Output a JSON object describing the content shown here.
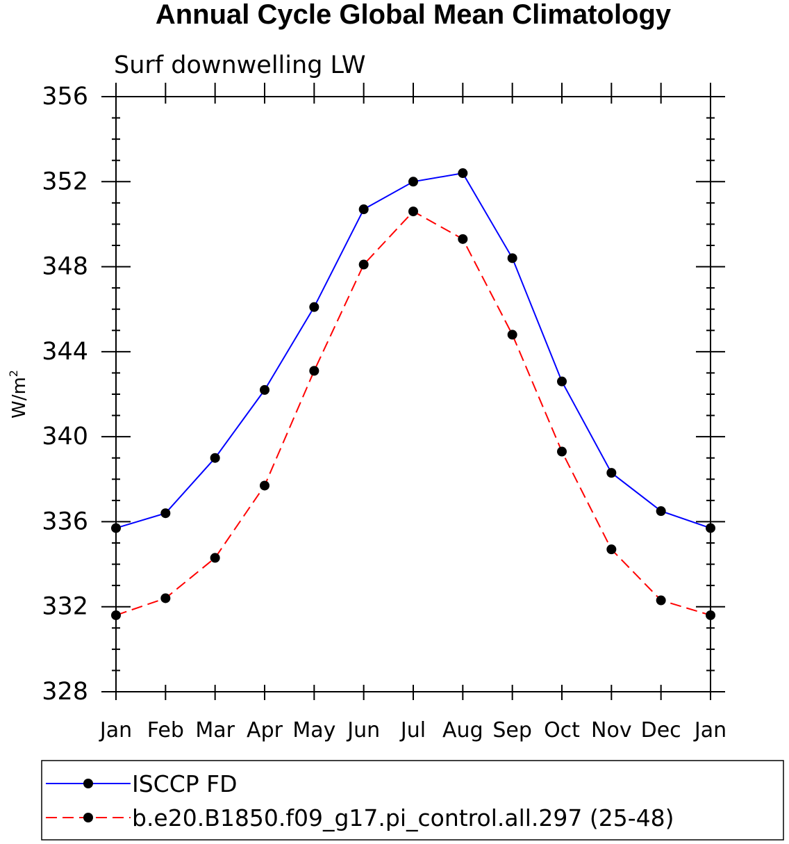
{
  "chart_data": {
    "type": "line",
    "title": "Annual Cycle Global Mean Climatology",
    "subtitle": "Surf downwelling LW",
    "xlabel": "",
    "ylabel": "W/m",
    "ylabel_superscript": "2",
    "ylim": [
      328,
      356
    ],
    "yticks": [
      "328",
      "332",
      "336",
      "340",
      "344",
      "348",
      "352",
      "356"
    ],
    "categories": [
      "Jan",
      "Feb",
      "Mar",
      "Apr",
      "May",
      "Jun",
      "Jul",
      "Aug",
      "Sep",
      "Oct",
      "Nov",
      "Dec",
      "Jan"
    ],
    "series": [
      {
        "name": "ISCCP FD",
        "color": "#0000ff",
        "style": "solid",
        "values": [
          335.7,
          336.4,
          339.0,
          342.2,
          346.1,
          350.7,
          352.0,
          352.4,
          348.4,
          342.6,
          338.3,
          336.5,
          335.7
        ]
      },
      {
        "name": "b.e20.B1850.f09_g17.pi_control.all.297 (25-48)",
        "color": "#ff0000",
        "style": "dashed",
        "values": [
          331.6,
          332.4,
          334.3,
          337.7,
          343.1,
          348.1,
          350.6,
          349.3,
          344.8,
          339.3,
          334.7,
          332.3,
          331.6
        ]
      }
    ],
    "legend_position": "bottom"
  }
}
